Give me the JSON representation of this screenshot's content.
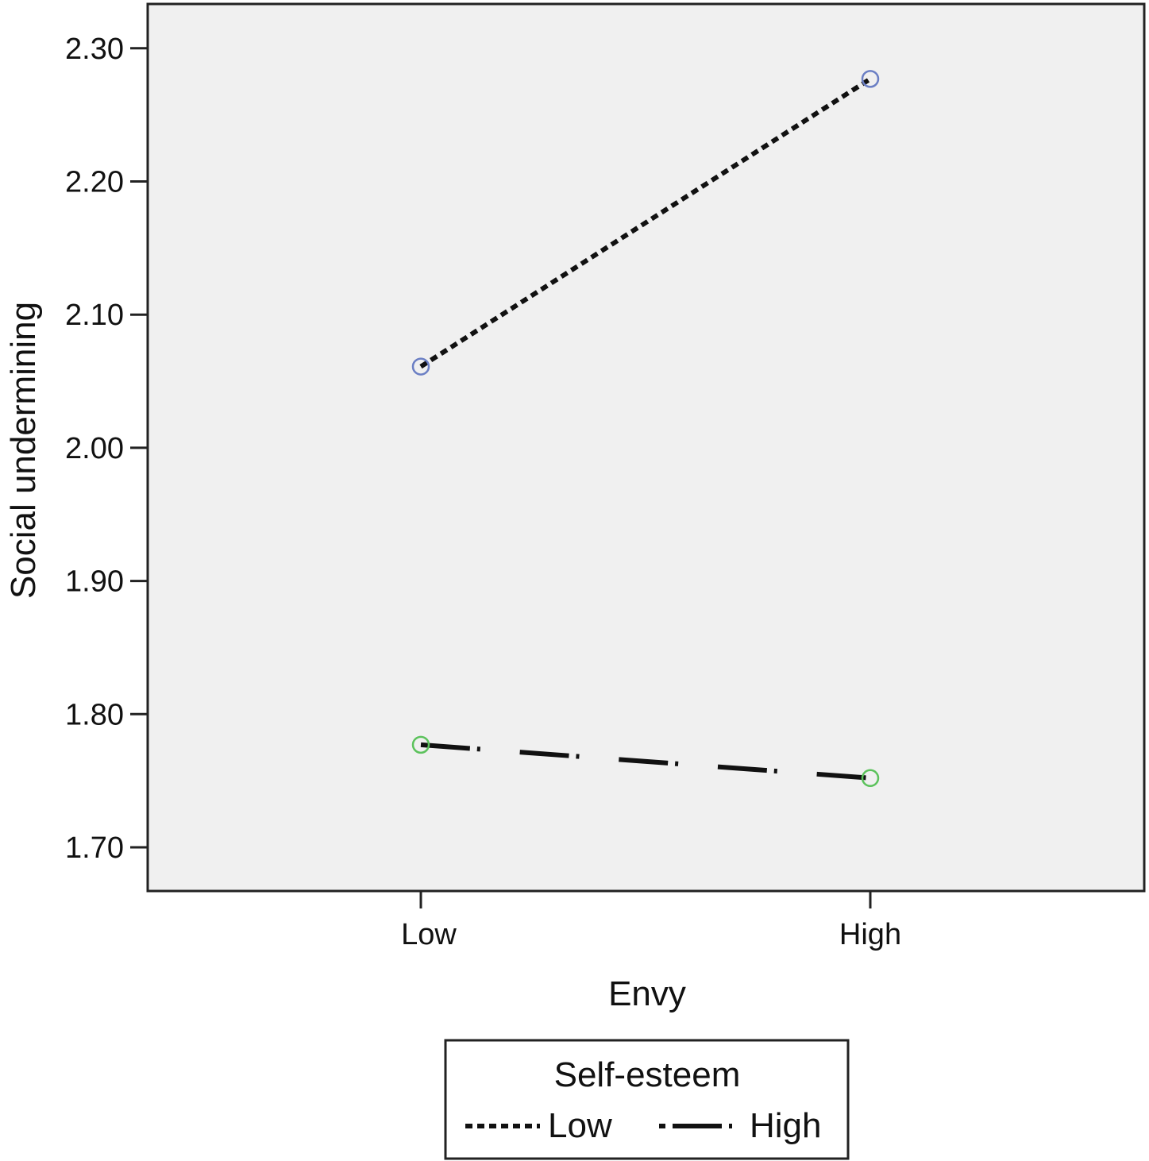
{
  "chart_data": {
    "type": "line",
    "x_title": "Envy",
    "y_title": "Social undermining",
    "categories": [
      "Low",
      "High"
    ],
    "ylim": [
      1.67,
      2.335
    ],
    "yticks": [
      "1.70",
      "1.80",
      "1.90",
      "2.00",
      "2.10",
      "2.20",
      "2.30"
    ],
    "grid": false,
    "legend": {
      "title": "Self-esteem",
      "placement": "bottom-center",
      "entries": [
        "Low",
        "High"
      ]
    },
    "series": [
      {
        "name": "Low",
        "values": [
          2.061,
          2.277
        ],
        "line_style": "dotted",
        "marker_color": "#6b7fc4"
      },
      {
        "name": "High",
        "values": [
          1.777,
          1.752
        ],
        "line_style": "dash-dot",
        "marker_color": "#5cc25c"
      }
    ],
    "colors": {
      "plot_background": "#f0f0f0",
      "frame": "#222222",
      "line": "#111111"
    }
  }
}
